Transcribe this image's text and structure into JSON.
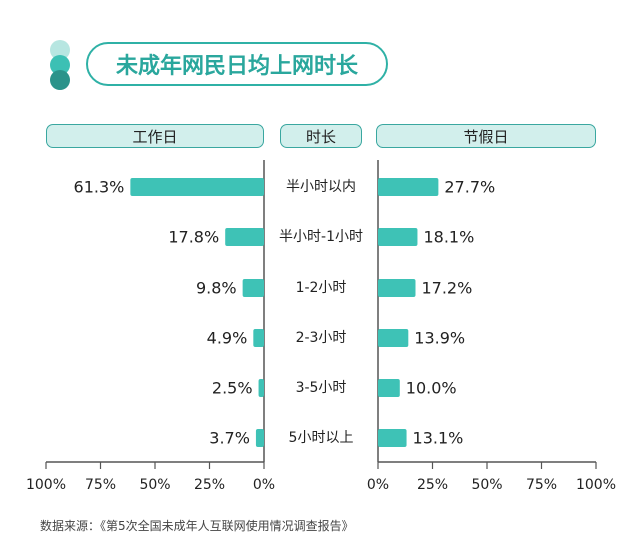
{
  "source_note": "数据来源：《第5次全国未成年人互联网使用情况调查报告》",
  "colors": {
    "bar": "#3ec2b6",
    "header_fill": "#d2efec",
    "header_border": "#3aa7a0",
    "title": "#2aa79d",
    "dot1": "#b7e6e1",
    "dot2": "#3cc0b4",
    "dot3": "#2b938a"
  },
  "icons": [
    "dot-icon",
    "dot-icon",
    "dot-icon"
  ],
  "chart_data": {
    "type": "bar",
    "title": "未成年网民日均上网时长",
    "center_header": "时长",
    "categories": [
      "半小时以内",
      "半小时-1小时",
      "1-2小时",
      "2-3小时",
      "3-5小时",
      "5小时以上"
    ],
    "series": [
      {
        "name": "工作日",
        "values": [
          61.3,
          17.8,
          9.8,
          4.9,
          2.5,
          3.7
        ],
        "labels": [
          "61.3%",
          "17.8%",
          "9.8%",
          "4.9%",
          "2.5%",
          "3.7%"
        ]
      },
      {
        "name": "节假日",
        "values": [
          27.7,
          18.1,
          17.2,
          13.9,
          10.0,
          13.1
        ],
        "labels": [
          "27.7%",
          "18.1%",
          "17.2%",
          "13.9%",
          "10.0%",
          "13.1%"
        ]
      }
    ],
    "left_ticks": [
      "100%",
      "75%",
      "50%",
      "25%",
      "0%"
    ],
    "right_ticks": [
      "0%",
      "25%",
      "50%",
      "75%",
      "100%"
    ],
    "xlim": [
      0,
      100
    ],
    "orientation": "horizontal-butterfly"
  }
}
